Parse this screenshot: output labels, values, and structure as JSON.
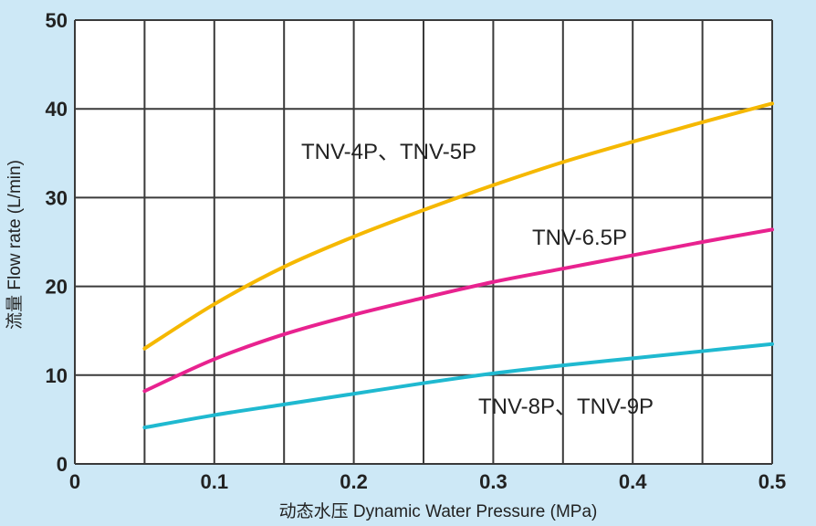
{
  "chart_data": {
    "type": "line",
    "xlabel": "动态水压 Dynamic Water Pressure (MPa)",
    "ylabel": "流量 Flow rate (L/min)",
    "xlim": [
      0,
      0.5
    ],
    "ylim": [
      0,
      50
    ],
    "x_ticks": [
      "0",
      "0.1",
      "0.2",
      "0.3",
      "0.4",
      "0.5"
    ],
    "y_ticks": [
      "0",
      "10",
      "20",
      "30",
      "40",
      "50"
    ],
    "grid": true,
    "series": [
      {
        "name": "TNV-4P、TNV-5P",
        "color": "#f5b800",
        "x": [
          0.05,
          0.1,
          0.15,
          0.2,
          0.25,
          0.3,
          0.35,
          0.4,
          0.45,
          0.5
        ],
        "values": [
          13,
          18,
          22.2,
          25.6,
          28.6,
          31.4,
          34,
          36.3,
          38.5,
          40.6
        ]
      },
      {
        "name": "TNV-6.5P",
        "color": "#e8228f",
        "x": [
          0.05,
          0.1,
          0.15,
          0.2,
          0.25,
          0.3,
          0.35,
          0.4,
          0.45,
          0.5
        ],
        "values": [
          8.2,
          11.8,
          14.6,
          16.8,
          18.7,
          20.5,
          22,
          23.5,
          25,
          26.4
        ]
      },
      {
        "name": "TNV-8P、TNV-9P",
        "color": "#1fb9d0",
        "x": [
          0.05,
          0.1,
          0.15,
          0.2,
          0.25,
          0.3,
          0.35,
          0.4,
          0.45,
          0.5
        ],
        "values": [
          4.1,
          5.5,
          6.7,
          7.9,
          9.1,
          10.2,
          11.1,
          11.9,
          12.7,
          13.5
        ]
      }
    ]
  }
}
